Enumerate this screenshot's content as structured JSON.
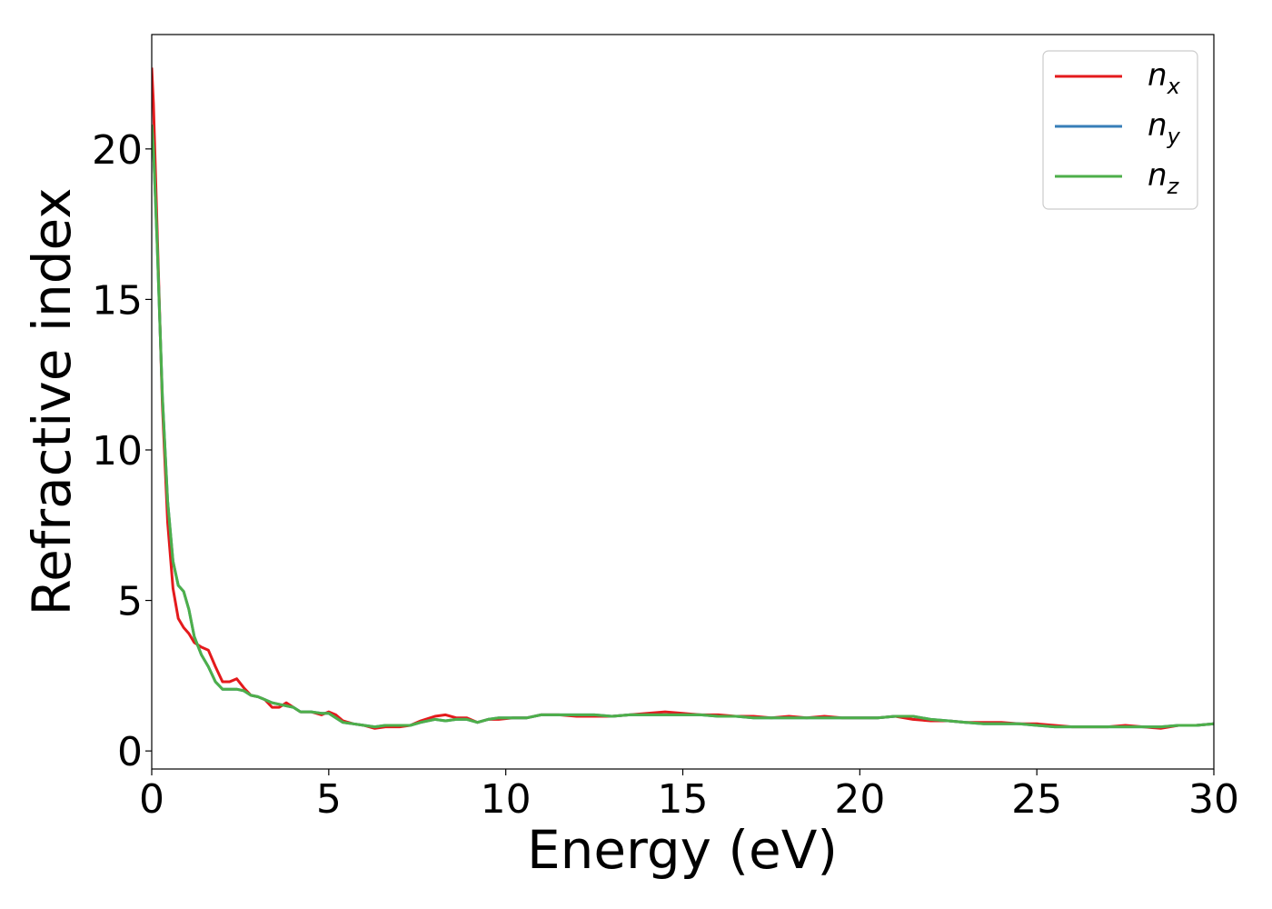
{
  "chart_data": {
    "type": "line",
    "title": "",
    "xlabel": "Energy (eV)",
    "ylabel": "Refractive index",
    "xlim": [
      0,
      30
    ],
    "ylim": [
      -0.6,
      23.8
    ],
    "xticks": [
      0,
      5,
      10,
      15,
      20,
      25,
      30
    ],
    "yticks": [
      0,
      5,
      10,
      15,
      20
    ],
    "grid": false,
    "legend_position": "top-right",
    "series": [
      {
        "name": "n_x",
        "legend_base": "n",
        "legend_sub": "x",
        "color": "#e41a1c",
        "x": [
          0,
          0.05,
          0.15,
          0.3,
          0.45,
          0.6,
          0.75,
          0.9,
          1.05,
          1.2,
          1.4,
          1.6,
          1.8,
          2.0,
          2.2,
          2.4,
          2.6,
          2.8,
          3.0,
          3.2,
          3.4,
          3.6,
          3.8,
          4.0,
          4.2,
          4.5,
          4.8,
          5.0,
          5.2,
          5.4,
          5.7,
          6.0,
          6.3,
          6.6,
          7.0,
          7.3,
          7.6,
          8.0,
          8.3,
          8.6,
          8.9,
          9.2,
          9.5,
          9.8,
          10.2,
          10.6,
          11.0,
          11.5,
          12.0,
          12.5,
          13.0,
          13.5,
          14.0,
          14.5,
          15.0,
          15.5,
          16.0,
          16.5,
          17.0,
          17.5,
          18.0,
          18.5,
          19.0,
          19.5,
          20.0,
          20.5,
          21.0,
          21.5,
          22.0,
          22.5,
          23.0,
          23.5,
          24.0,
          24.5,
          25.0,
          25.5,
          26.0,
          26.5,
          27.0,
          27.5,
          28.0,
          28.5,
          29.0,
          29.5,
          30.0
        ],
        "y": [
          22.7,
          21.5,
          17.5,
          11.5,
          7.6,
          5.4,
          4.4,
          4.1,
          3.9,
          3.6,
          3.45,
          3.35,
          2.8,
          2.3,
          2.3,
          2.4,
          2.1,
          1.85,
          1.8,
          1.7,
          1.45,
          1.45,
          1.6,
          1.45,
          1.3,
          1.3,
          1.2,
          1.3,
          1.2,
          1.0,
          0.9,
          0.85,
          0.75,
          0.8,
          0.8,
          0.85,
          1.0,
          1.15,
          1.2,
          1.1,
          1.1,
          0.95,
          1.05,
          1.05,
          1.1,
          1.1,
          1.2,
          1.2,
          1.15,
          1.15,
          1.15,
          1.2,
          1.25,
          1.3,
          1.25,
          1.2,
          1.2,
          1.15,
          1.15,
          1.1,
          1.15,
          1.1,
          1.15,
          1.1,
          1.1,
          1.1,
          1.15,
          1.05,
          1.0,
          1.0,
          0.95,
          0.95,
          0.95,
          0.9,
          0.9,
          0.85,
          0.8,
          0.8,
          0.8,
          0.85,
          0.8,
          0.75,
          0.85,
          0.85,
          0.9
        ]
      },
      {
        "name": "n_y",
        "legend_base": "n",
        "legend_sub": "y",
        "color": "#377eb8",
        "x": [
          0,
          0.05,
          0.15,
          0.3,
          0.45,
          0.6,
          0.75,
          0.9,
          1.05,
          1.2,
          1.4,
          1.6,
          1.8,
          2.0,
          2.2,
          2.4,
          2.6,
          2.8,
          3.0,
          3.2,
          3.4,
          3.6,
          3.8,
          4.0,
          4.2,
          4.5,
          4.8,
          5.0,
          5.2,
          5.4,
          5.7,
          6.0,
          6.3,
          6.6,
          7.0,
          7.3,
          7.6,
          8.0,
          8.3,
          8.6,
          8.9,
          9.2,
          9.5,
          9.8,
          10.2,
          10.6,
          11.0,
          11.5,
          12.0,
          12.5,
          13.0,
          13.5,
          14.0,
          14.5,
          15.0,
          15.5,
          16.0,
          16.5,
          17.0,
          17.5,
          18.0,
          18.5,
          19.0,
          19.5,
          20.0,
          20.5,
          21.0,
          21.5,
          22.0,
          22.5,
          23.0,
          23.5,
          24.0,
          24.5,
          25.0,
          25.5,
          26.0,
          26.5,
          27.0,
          27.5,
          28.0,
          28.5,
          29.0,
          29.5,
          30.0
        ],
        "y": [
          20.8,
          20.0,
          17.0,
          11.8,
          8.3,
          6.3,
          5.5,
          5.3,
          4.7,
          3.8,
          3.2,
          2.8,
          2.3,
          2.05,
          2.05,
          2.05,
          2.0,
          1.85,
          1.8,
          1.7,
          1.6,
          1.55,
          1.5,
          1.45,
          1.3,
          1.3,
          1.25,
          1.25,
          1.1,
          0.95,
          0.9,
          0.85,
          0.8,
          0.85,
          0.85,
          0.85,
          0.95,
          1.05,
          1.0,
          1.05,
          1.05,
          0.95,
          1.05,
          1.1,
          1.1,
          1.1,
          1.2,
          1.2,
          1.2,
          1.2,
          1.15,
          1.2,
          1.2,
          1.2,
          1.2,
          1.2,
          1.15,
          1.15,
          1.1,
          1.1,
          1.1,
          1.1,
          1.1,
          1.1,
          1.1,
          1.1,
          1.15,
          1.15,
          1.05,
          1.0,
          0.95,
          0.9,
          0.9,
          0.9,
          0.85,
          0.8,
          0.8,
          0.8,
          0.8,
          0.8,
          0.8,
          0.8,
          0.85,
          0.85,
          0.9
        ]
      },
      {
        "name": "n_z",
        "legend_base": "n",
        "legend_sub": "z",
        "color": "#4daf4a",
        "x": [
          0,
          0.05,
          0.15,
          0.3,
          0.45,
          0.6,
          0.75,
          0.9,
          1.05,
          1.2,
          1.4,
          1.6,
          1.8,
          2.0,
          2.2,
          2.4,
          2.6,
          2.8,
          3.0,
          3.2,
          3.4,
          3.6,
          3.8,
          4.0,
          4.2,
          4.5,
          4.8,
          5.0,
          5.2,
          5.4,
          5.7,
          6.0,
          6.3,
          6.6,
          7.0,
          7.3,
          7.6,
          8.0,
          8.3,
          8.6,
          8.9,
          9.2,
          9.5,
          9.8,
          10.2,
          10.6,
          11.0,
          11.5,
          12.0,
          12.5,
          13.0,
          13.5,
          14.0,
          14.5,
          15.0,
          15.5,
          16.0,
          16.5,
          17.0,
          17.5,
          18.0,
          18.5,
          19.0,
          19.5,
          20.0,
          20.5,
          21.0,
          21.5,
          22.0,
          22.5,
          23.0,
          23.5,
          24.0,
          24.5,
          25.0,
          25.5,
          26.0,
          26.5,
          27.0,
          27.5,
          28.0,
          28.5,
          29.0,
          29.5,
          30.0
        ],
        "y": [
          20.8,
          20.0,
          17.0,
          11.8,
          8.3,
          6.3,
          5.5,
          5.3,
          4.7,
          3.8,
          3.2,
          2.8,
          2.3,
          2.05,
          2.05,
          2.05,
          2.0,
          1.85,
          1.8,
          1.7,
          1.6,
          1.55,
          1.5,
          1.45,
          1.3,
          1.3,
          1.25,
          1.25,
          1.1,
          0.95,
          0.9,
          0.85,
          0.8,
          0.85,
          0.85,
          0.85,
          0.95,
          1.05,
          1.0,
          1.05,
          1.05,
          0.95,
          1.05,
          1.1,
          1.1,
          1.1,
          1.2,
          1.2,
          1.2,
          1.2,
          1.15,
          1.2,
          1.2,
          1.2,
          1.2,
          1.2,
          1.15,
          1.15,
          1.1,
          1.1,
          1.1,
          1.1,
          1.1,
          1.1,
          1.1,
          1.1,
          1.15,
          1.15,
          1.05,
          1.0,
          0.95,
          0.9,
          0.9,
          0.9,
          0.85,
          0.8,
          0.8,
          0.8,
          0.8,
          0.8,
          0.8,
          0.8,
          0.85,
          0.85,
          0.9
        ]
      }
    ]
  }
}
